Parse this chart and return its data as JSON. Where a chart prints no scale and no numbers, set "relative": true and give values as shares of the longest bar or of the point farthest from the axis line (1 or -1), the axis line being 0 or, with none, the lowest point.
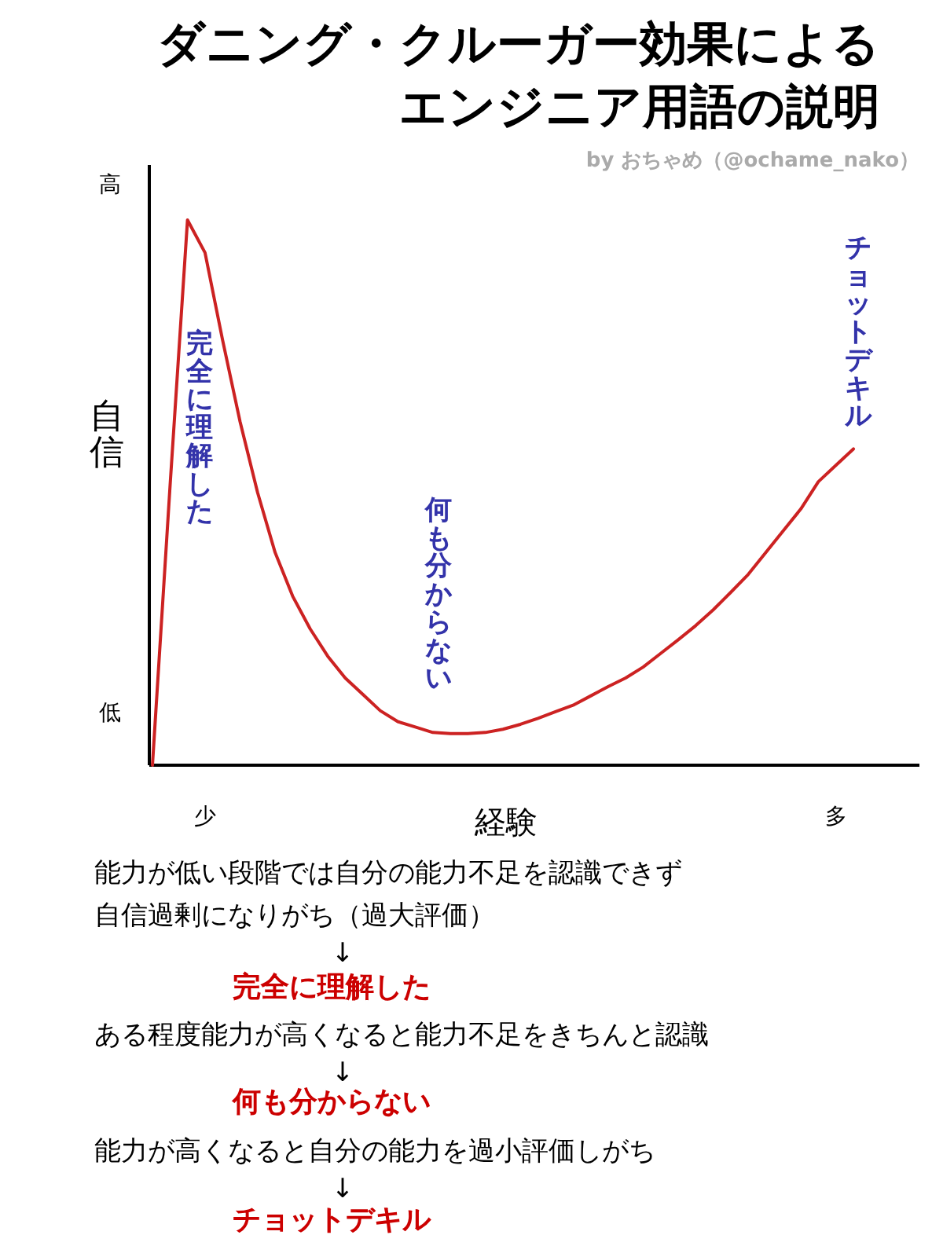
{
  "chart_data": {
    "type": "line",
    "title": "ダニング・クルーガー効果によるエンジニア用語の説明",
    "subtitle": "by おちゃめ（@ochame_nako）",
    "xlabel": "経験",
    "ylabel": "自信",
    "relative": true,
    "legend": false,
    "grid": false,
    "categories": [
      null,
      null,
      null,
      "少",
      null,
      null,
      null,
      null,
      null,
      null,
      null,
      null,
      null,
      null,
      null,
      null,
      null,
      null,
      null,
      null,
      null,
      null,
      null,
      null,
      null,
      null,
      null,
      null,
      null,
      null,
      null,
      null,
      null,
      null,
      null,
      null,
      null,
      null,
      null,
      "多",
      null
    ],
    "series": [
      {
        "color": "#cc2222",
        "values": [
          0,
          0.51,
          1,
          0.94,
          0.78,
          0.63,
          0.5,
          0.39,
          0.31,
          0.25,
          0.2,
          0.16,
          0.13,
          0.1,
          0.08,
          0.07,
          0.06,
          0.058,
          0.058,
          0.06,
          0.066,
          0.075,
          0.086,
          0.098,
          0.11,
          0.127,
          0.144,
          0.16,
          0.18,
          0.205,
          0.23,
          0.256,
          0.285,
          0.317,
          0.35,
          0.39,
          0.43,
          0.47,
          0.52,
          0.55,
          0.58
        ]
      }
    ],
    "annotations": [
      "高",
      "低",
      "完全に理解した",
      "何も分からない",
      "チョットデキル",
      "能力が低い段階では自分の能力不足を認識できず",
      "自信過剰になりがち（過大評価）",
      "↓",
      "完全に理解した",
      "ある程度能力が高くなると能力不足をきちんと認識",
      "↓",
      "何も分からない",
      "能力が高くなると自分の能力を過小評価しがち",
      "↓",
      "チョットデキル"
    ]
  }
}
